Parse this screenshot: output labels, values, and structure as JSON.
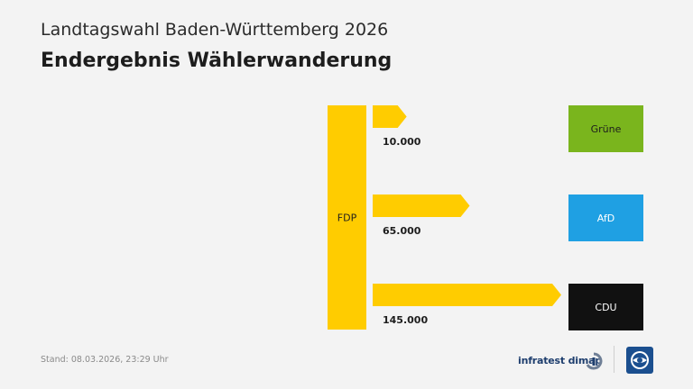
{
  "header": {
    "title": "Landtagswahl Baden-Württemberg 2026",
    "subtitle": "Endergebnis Wählerwanderung"
  },
  "chart_data": {
    "type": "bar",
    "source": "FDP",
    "source_color": "#ffcc00",
    "flows": [
      {
        "target": "Grüne",
        "value": 10000,
        "label": "10.000",
        "target_color": "#7ab51d",
        "target_text_color": "#1d1d1d"
      },
      {
        "target": "AfD",
        "value": 65000,
        "label": "65.000",
        "target_color": "#1fa0e3",
        "target_text_color": "#ffffff"
      },
      {
        "target": "CDU",
        "value": 145000,
        "label": "145.000",
        "target_color": "#111111",
        "target_text_color": "#ffffff"
      }
    ],
    "flow_color": "#ffcc00"
  },
  "footer": {
    "stand": "Stand:  08.03.2026, 23:29 Uhr",
    "brand": "infratest dimap"
  }
}
